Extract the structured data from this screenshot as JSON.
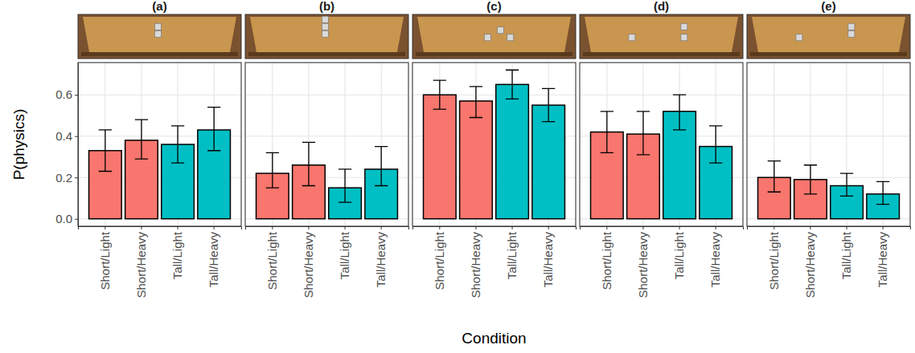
{
  "chart_data": {
    "type": "bar",
    "ylabel": "P(physics)",
    "xlabel": "Condition",
    "ylim": [
      -0.036,
      0.756
    ],
    "yticks": [
      {
        "value": 0,
        "label": "0.0"
      },
      {
        "value": 0.2,
        "label": "0.2"
      },
      {
        "value": 0.4,
        "label": "0.4"
      },
      {
        "value": 0.6,
        "label": "0.6"
      }
    ],
    "grid": true,
    "panels": [
      {
        "title": "(a)",
        "categories": [
          "Short/Light",
          "Short/Heavy",
          "Tall/Light",
          "Tall/Heavy"
        ],
        "values": [
          0.33,
          0.38,
          0.36,
          0.43
        ],
        "ci_low": [
          0.23,
          0.29,
          0.27,
          0.33
        ],
        "ci_high": [
          0.43,
          0.48,
          0.45,
          0.54
        ],
        "colors": [
          "#F8766D",
          "#F8766D",
          "#00BFC4",
          "#00BFC4"
        ]
      },
      {
        "title": "(b)",
        "categories": [
          "Short/Light",
          "Short/Heavy",
          "Tall/Light",
          "Tall/Heavy"
        ],
        "values": [
          0.22,
          0.26,
          0.15,
          0.24
        ],
        "ci_low": [
          0.15,
          0.16,
          0.08,
          0.16
        ],
        "ci_high": [
          0.32,
          0.37,
          0.24,
          0.35
        ],
        "colors": [
          "#F8766D",
          "#F8766D",
          "#00BFC4",
          "#00BFC4"
        ]
      },
      {
        "title": "(c)",
        "categories": [
          "Short/Light",
          "Short/Heavy",
          "Tall/Light",
          "Tall/Heavy"
        ],
        "values": [
          0.6,
          0.57,
          0.65,
          0.55
        ],
        "ci_low": [
          0.53,
          0.49,
          0.58,
          0.47
        ],
        "ci_high": [
          0.67,
          0.64,
          0.72,
          0.63
        ],
        "colors": [
          "#F8766D",
          "#F8766D",
          "#00BFC4",
          "#00BFC4"
        ]
      },
      {
        "title": "(d)",
        "categories": [
          "Short/Light",
          "Short/Heavy",
          "Tall/Light",
          "Tall/Heavy"
        ],
        "values": [
          0.42,
          0.41,
          0.52,
          0.35
        ],
        "ci_low": [
          0.32,
          0.31,
          0.43,
          0.27
        ],
        "ci_high": [
          0.52,
          0.52,
          0.6,
          0.45
        ],
        "colors": [
          "#F8766D",
          "#F8766D",
          "#00BFC4",
          "#00BFC4"
        ]
      },
      {
        "title": "(e)",
        "categories": [
          "Short/Light",
          "Short/Heavy",
          "Tall/Light",
          "Tall/Heavy"
        ],
        "values": [
          0.2,
          0.19,
          0.16,
          0.12
        ],
        "ci_low": [
          0.13,
          0.12,
          0.11,
          0.07
        ],
        "ci_high": [
          0.28,
          0.26,
          0.22,
          0.18
        ],
        "colors": [
          "#F8766D",
          "#F8766D",
          "#00BFC4",
          "#00BFC4"
        ]
      }
    ]
  }
}
